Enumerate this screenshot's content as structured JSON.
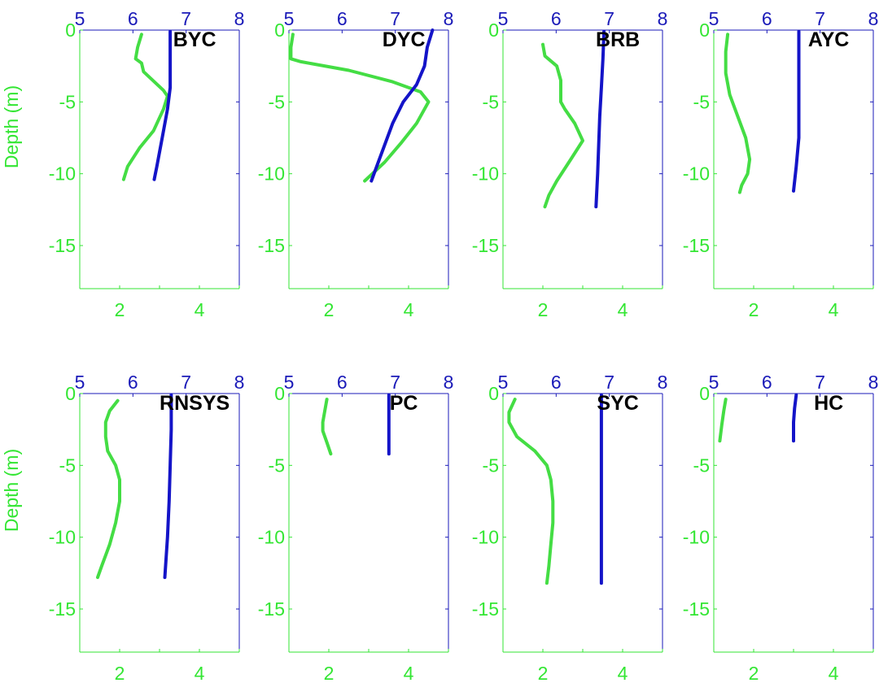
{
  "colors": {
    "primary_axis": "#33e633",
    "secondary_axis": "#1a1ab8",
    "primary_series": "#44dd44",
    "secondary_series": "#1414c8",
    "station_label": "#000000"
  },
  "chart_data": [
    {
      "type": "line",
      "station": "BYC",
      "ylabel": "Depth (m)",
      "x_bottom_ticks": [
        "2",
        "4"
      ],
      "x_top_ticks": [
        "5",
        "6",
        "7",
        "8"
      ],
      "y_ticks": [
        "0",
        "-5",
        "-10",
        "-15"
      ],
      "xlim_bottom": [
        1,
        5
      ],
      "xlim_top": [
        5,
        8
      ],
      "ylim": [
        -18,
        0
      ],
      "series": [
        {
          "axis": "bottom",
          "points": [
            [
              2.55,
              -0.3
            ],
            [
              2.45,
              -1.2
            ],
            [
              2.4,
              -2.0
            ],
            [
              2.55,
              -2.3
            ],
            [
              2.6,
              -2.9
            ],
            [
              3.1,
              -4.2
            ],
            [
              3.2,
              -4.6
            ],
            [
              3.1,
              -5.5
            ],
            [
              2.85,
              -7.0
            ],
            [
              2.5,
              -8.2
            ],
            [
              2.2,
              -9.5
            ],
            [
              2.1,
              -10.4
            ]
          ]
        },
        {
          "axis": "top",
          "points": [
            [
              6.7,
              -0.1
            ],
            [
              6.7,
              -2.0
            ],
            [
              6.7,
              -4.0
            ],
            [
              6.65,
              -5.5
            ],
            [
              6.55,
              -7.5
            ],
            [
              6.45,
              -9.5
            ],
            [
              6.4,
              -10.4
            ]
          ]
        }
      ]
    },
    {
      "type": "line",
      "station": "DYC",
      "ylabel": "",
      "x_bottom_ticks": [
        "2",
        "4"
      ],
      "x_top_ticks": [
        "5",
        "6",
        "7",
        "8"
      ],
      "y_ticks": [
        "0",
        "-5",
        "-10",
        "-15"
      ],
      "xlim_bottom": [
        1,
        5
      ],
      "xlim_top": [
        5,
        8
      ],
      "ylim": [
        -18,
        0
      ],
      "series": [
        {
          "axis": "bottom",
          "points": [
            [
              1.1,
              -0.3
            ],
            [
              1.05,
              -1.2
            ],
            [
              1.05,
              -2.0
            ],
            [
              1.3,
              -2.2
            ],
            [
              2.5,
              -2.8
            ],
            [
              3.6,
              -3.6
            ],
            [
              4.3,
              -4.3
            ],
            [
              4.5,
              -5.0
            ],
            [
              4.2,
              -6.5
            ],
            [
              3.8,
              -7.9
            ],
            [
              3.4,
              -9.2
            ],
            [
              2.9,
              -10.5
            ]
          ]
        },
        {
          "axis": "top",
          "points": [
            [
              7.7,
              0
            ],
            [
              7.6,
              -1.2
            ],
            [
              7.55,
              -2.5
            ],
            [
              7.4,
              -3.8
            ],
            [
              7.15,
              -5.0
            ],
            [
              6.95,
              -6.5
            ],
            [
              6.8,
              -8.0
            ],
            [
              6.65,
              -9.5
            ],
            [
              6.55,
              -10.5
            ]
          ]
        }
      ]
    },
    {
      "type": "line",
      "station": "BRB",
      "ylabel": "",
      "x_bottom_ticks": [
        "2",
        "4"
      ],
      "x_top_ticks": [
        "5",
        "6",
        "7",
        "8"
      ],
      "y_ticks": [
        "0",
        "-5",
        "-10",
        "-15"
      ],
      "xlim_bottom": [
        1,
        5
      ],
      "xlim_top": [
        5,
        8
      ],
      "ylim": [
        -18,
        0
      ],
      "series": [
        {
          "axis": "bottom",
          "points": [
            [
              2.0,
              -1.0
            ],
            [
              2.05,
              -1.8
            ],
            [
              2.35,
              -2.5
            ],
            [
              2.45,
              -3.5
            ],
            [
              2.45,
              -5.0
            ],
            [
              2.55,
              -5.5
            ],
            [
              2.8,
              -6.5
            ],
            [
              3.0,
              -7.7
            ],
            [
              2.7,
              -9.0
            ],
            [
              2.35,
              -10.5
            ],
            [
              2.15,
              -11.5
            ],
            [
              2.05,
              -12.3
            ]
          ]
        },
        {
          "axis": "top",
          "points": [
            [
              6.9,
              -0.1
            ],
            [
              6.88,
              -2.0
            ],
            [
              6.85,
              -4.0
            ],
            [
              6.82,
              -6.0
            ],
            [
              6.8,
              -8.0
            ],
            [
              6.78,
              -10.0
            ],
            [
              6.75,
              -12.3
            ]
          ]
        }
      ]
    },
    {
      "type": "line",
      "station": "AYC",
      "ylabel": "",
      "x_bottom_ticks": [
        "2",
        "4"
      ],
      "x_top_ticks": [
        "5",
        "6",
        "7",
        "8"
      ],
      "y_ticks": [
        "0",
        "-5",
        "-10",
        "-15"
      ],
      "xlim_bottom": [
        1,
        5
      ],
      "xlim_top": [
        5,
        8
      ],
      "ylim": [
        -18,
        0
      ],
      "series": [
        {
          "axis": "bottom",
          "points": [
            [
              1.35,
              -0.3
            ],
            [
              1.3,
              -1.5
            ],
            [
              1.3,
              -3.0
            ],
            [
              1.4,
              -4.5
            ],
            [
              1.6,
              -6.0
            ],
            [
              1.8,
              -7.5
            ],
            [
              1.9,
              -9.0
            ],
            [
              1.85,
              -10.0
            ],
            [
              1.7,
              -10.8
            ],
            [
              1.65,
              -11.3
            ]
          ]
        },
        {
          "axis": "top",
          "points": [
            [
              6.6,
              -0.1
            ],
            [
              6.6,
              -2.5
            ],
            [
              6.6,
              -5.0
            ],
            [
              6.6,
              -7.5
            ],
            [
              6.55,
              -9.5
            ],
            [
              6.5,
              -11.2
            ]
          ]
        }
      ]
    },
    {
      "type": "line",
      "station": "RNSYS",
      "ylabel": "Depth (m)",
      "x_bottom_ticks": [
        "2",
        "4"
      ],
      "x_top_ticks": [
        "5",
        "6",
        "7",
        "8"
      ],
      "y_ticks": [
        "0",
        "-5",
        "-10",
        "-15"
      ],
      "xlim_bottom": [
        1,
        5
      ],
      "xlim_top": [
        5,
        8
      ],
      "ylim": [
        -18,
        0
      ],
      "series": [
        {
          "axis": "bottom",
          "points": [
            [
              1.95,
              -0.5
            ],
            [
              1.75,
              -1.2
            ],
            [
              1.65,
              -2.0
            ],
            [
              1.65,
              -3.0
            ],
            [
              1.7,
              -4.0
            ],
            [
              1.9,
              -5.0
            ],
            [
              2.0,
              -6.0
            ],
            [
              2.0,
              -7.5
            ],
            [
              1.9,
              -9.0
            ],
            [
              1.75,
              -10.5
            ],
            [
              1.55,
              -12.0
            ],
            [
              1.45,
              -12.8
            ]
          ]
        },
        {
          "axis": "top",
          "points": [
            [
              6.72,
              -0.1
            ],
            [
              6.72,
              -2.5
            ],
            [
              6.7,
              -5.0
            ],
            [
              6.68,
              -7.5
            ],
            [
              6.65,
              -10.0
            ],
            [
              6.6,
              -12.8
            ]
          ]
        }
      ]
    },
    {
      "type": "line",
      "station": "PC",
      "ylabel": "",
      "x_bottom_ticks": [
        "2",
        "4"
      ],
      "x_top_ticks": [
        "5",
        "6",
        "7",
        "8"
      ],
      "y_ticks": [
        "0",
        "-5",
        "-10",
        "-15"
      ],
      "xlim_bottom": [
        1,
        5
      ],
      "xlim_top": [
        5,
        8
      ],
      "ylim": [
        -18,
        0
      ],
      "series": [
        {
          "axis": "bottom",
          "points": [
            [
              1.95,
              -0.4
            ],
            [
              1.9,
              -1.2
            ],
            [
              1.85,
              -2.0
            ],
            [
              1.85,
              -2.6
            ],
            [
              1.95,
              -3.4
            ],
            [
              2.05,
              -4.2
            ]
          ]
        },
        {
          "axis": "top",
          "points": [
            [
              6.88,
              -0.1
            ],
            [
              6.88,
              -2.0
            ],
            [
              6.88,
              -4.2
            ]
          ]
        }
      ]
    },
    {
      "type": "line",
      "station": "SYC",
      "ylabel": "",
      "x_bottom_ticks": [
        "2",
        "4"
      ],
      "x_top_ticks": [
        "5",
        "6",
        "7",
        "8"
      ],
      "y_ticks": [
        "0",
        "-5",
        "-10",
        "-15"
      ],
      "xlim_bottom": [
        1,
        5
      ],
      "xlim_top": [
        5,
        8
      ],
      "ylim": [
        -18,
        0
      ],
      "series": [
        {
          "axis": "bottom",
          "points": [
            [
              1.3,
              -0.4
            ],
            [
              1.15,
              -1.3
            ],
            [
              1.15,
              -2.0
            ],
            [
              1.35,
              -3.0
            ],
            [
              1.8,
              -4.0
            ],
            [
              2.1,
              -5.0
            ],
            [
              2.2,
              -6.0
            ],
            [
              2.25,
              -7.5
            ],
            [
              2.25,
              -9.0
            ],
            [
              2.2,
              -10.5
            ],
            [
              2.15,
              -12.0
            ],
            [
              2.1,
              -13.2
            ]
          ]
        },
        {
          "axis": "top",
          "points": [
            [
              6.85,
              -0.1
            ],
            [
              6.85,
              -5.0
            ],
            [
              6.85,
              -10.0
            ],
            [
              6.85,
              -13.2
            ]
          ]
        }
      ]
    },
    {
      "type": "line",
      "station": "HC",
      "ylabel": "",
      "x_bottom_ticks": [
        "2",
        "4"
      ],
      "x_top_ticks": [
        "5",
        "6",
        "7",
        "8"
      ],
      "y_ticks": [
        "0",
        "-5",
        "-10",
        "-15"
      ],
      "xlim_bottom": [
        1,
        5
      ],
      "xlim_top": [
        5,
        8
      ],
      "ylim": [
        -18,
        0
      ],
      "series": [
        {
          "axis": "bottom",
          "points": [
            [
              1.3,
              -0.4
            ],
            [
              1.25,
              -1.2
            ],
            [
              1.2,
              -2.2
            ],
            [
              1.15,
              -3.3
            ]
          ]
        },
        {
          "axis": "top",
          "points": [
            [
              6.55,
              -0.1
            ],
            [
              6.52,
              -1.0
            ],
            [
              6.5,
              -2.0
            ],
            [
              6.5,
              -3.3
            ]
          ]
        }
      ]
    }
  ]
}
